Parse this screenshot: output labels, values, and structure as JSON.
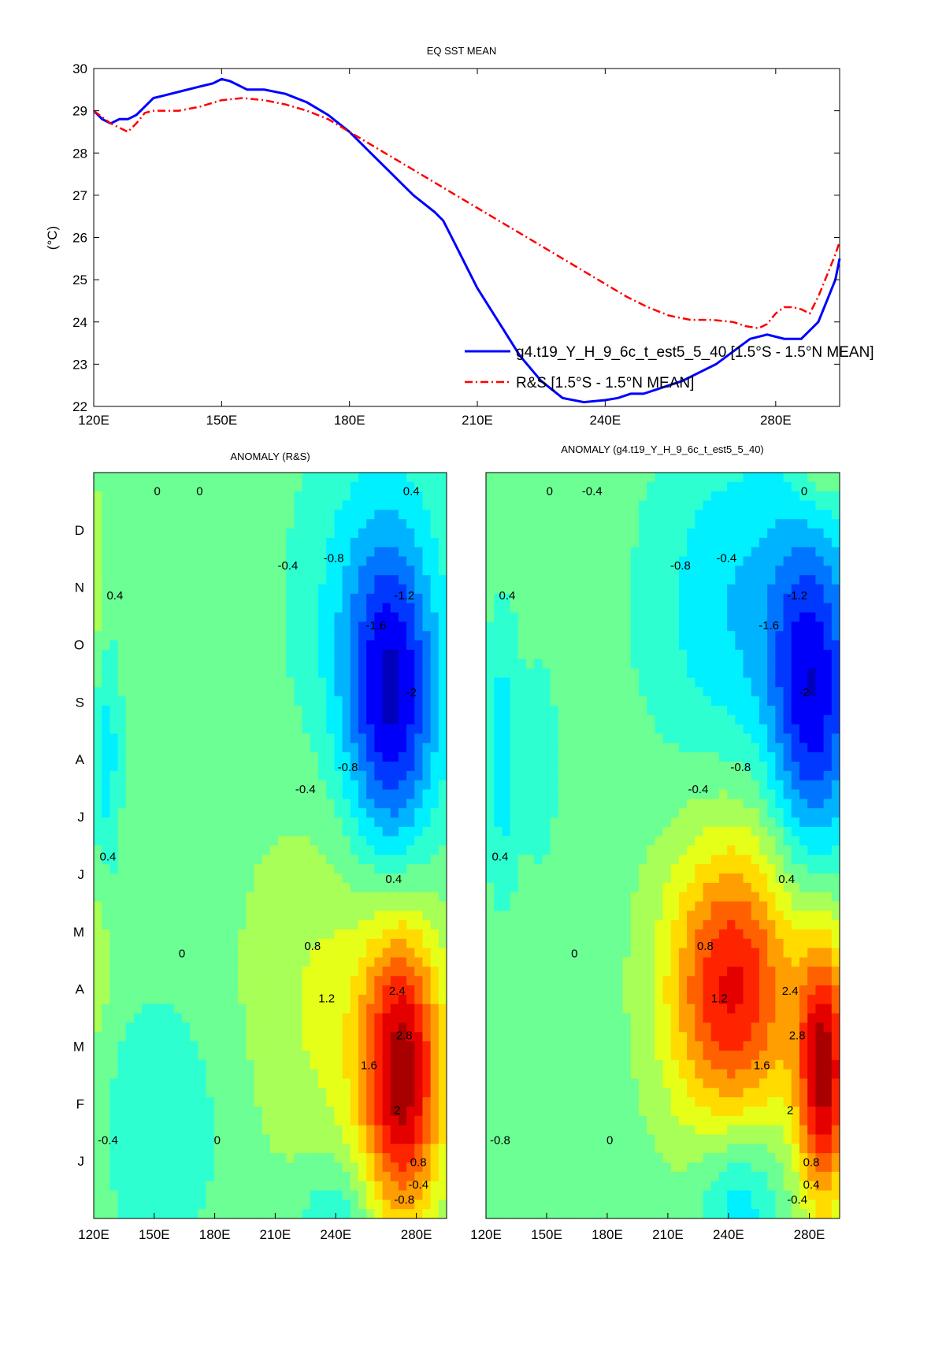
{
  "chart_data": [
    {
      "type": "line",
      "title": "EQ SST MEAN",
      "ylabel": "(°C)",
      "xlabel": "",
      "xlim": [
        120,
        295
      ],
      "ylim": [
        22,
        30
      ],
      "xticks": [
        120,
        150,
        180,
        210,
        240,
        280
      ],
      "xtick_labels": [
        "120E",
        "150E",
        "180E",
        "210E",
        "240E",
        "280E"
      ],
      "yticks": [
        22,
        23,
        24,
        25,
        26,
        27,
        28,
        29,
        30
      ],
      "ytick_labels": [
        "22",
        "23",
        "24",
        "25",
        "26",
        "27",
        "28",
        "29",
        "30"
      ],
      "legend_position": "lower-right",
      "series": [
        {
          "name": "g4.t19_Y_H_9_6c_t_est5_5_40 [1.5°S - 1.5°N MEAN]",
          "color": "#0000ff",
          "style": "solid",
          "x": [
            120,
            122,
            124,
            126,
            128,
            130,
            132,
            134,
            136,
            140,
            144,
            148,
            150,
            152,
            154,
            156,
            158,
            160,
            165,
            170,
            175,
            180,
            185,
            190,
            195,
            200,
            202,
            204,
            206,
            208,
            210,
            215,
            220,
            225,
            230,
            235,
            240,
            243,
            246,
            249,
            252,
            255,
            258,
            262,
            266,
            270,
            274,
            278,
            282,
            286,
            290,
            292,
            294,
            295
          ],
          "y": [
            29.0,
            28.8,
            28.7,
            28.8,
            28.8,
            28.9,
            29.1,
            29.3,
            29.35,
            29.45,
            29.55,
            29.65,
            29.75,
            29.7,
            29.6,
            29.5,
            29.5,
            29.5,
            29.4,
            29.2,
            28.9,
            28.5,
            28.0,
            27.5,
            27.0,
            26.6,
            26.4,
            26.0,
            25.6,
            25.2,
            24.8,
            24.0,
            23.2,
            22.6,
            22.2,
            22.1,
            22.15,
            22.2,
            22.3,
            22.3,
            22.4,
            22.5,
            22.6,
            22.8,
            23.0,
            23.3,
            23.6,
            23.7,
            23.6,
            23.6,
            24.0,
            24.5,
            25.0,
            25.5
          ]
        },
        {
          "name": "R&S [1.5°S - 1.5°N MEAN]",
          "color": "#ff0000",
          "style": "dash-dot",
          "x": [
            120,
            122,
            124,
            126,
            128,
            130,
            132,
            134,
            136,
            140,
            145,
            150,
            155,
            160,
            165,
            170,
            175,
            180,
            185,
            190,
            195,
            200,
            205,
            210,
            215,
            220,
            225,
            230,
            235,
            240,
            245,
            250,
            255,
            260,
            265,
            270,
            273,
            276,
            278,
            280,
            282,
            284,
            286,
            288,
            290,
            292,
            294,
            295
          ],
          "y": [
            29.0,
            28.85,
            28.7,
            28.6,
            28.5,
            28.7,
            28.95,
            29.0,
            29.0,
            29.0,
            29.1,
            29.25,
            29.3,
            29.25,
            29.15,
            29.0,
            28.8,
            28.5,
            28.2,
            27.9,
            27.6,
            27.3,
            27.0,
            26.7,
            26.4,
            26.1,
            25.8,
            25.5,
            25.2,
            24.9,
            24.6,
            24.35,
            24.15,
            24.05,
            24.05,
            24.0,
            23.9,
            23.85,
            23.95,
            24.2,
            24.35,
            24.35,
            24.3,
            24.2,
            24.6,
            25.1,
            25.6,
            25.9
          ]
        }
      ]
    },
    {
      "type": "heatmap",
      "title": "ANOMALY (R&S)",
      "xlim": [
        120,
        295
      ],
      "xticks": [
        120,
        150,
        180,
        210,
        240,
        280
      ],
      "xtick_labels": [
        "120E",
        "150E",
        "180E",
        "210E",
        "240E",
        "280E"
      ],
      "ytick_labels": [
        "J",
        "F",
        "M",
        "A",
        "M",
        "J",
        "J",
        "A",
        "S",
        "O",
        "N",
        "D"
      ],
      "colormap": "jet",
      "clim": [
        -2.4,
        2.8
      ],
      "contour_interval": 0.4,
      "blobs": [
        {
          "lon": 273,
          "month": 2.3,
          "value": 3.0,
          "sx": 14,
          "sy": 1.7
        },
        {
          "lon": 240,
          "month": 3.5,
          "value": 0.7,
          "sx": 32,
          "sy": 2.2
        },
        {
          "lon": 268,
          "month": 8.2,
          "value": -2.3,
          "sx": 16,
          "sy": 1.9
        },
        {
          "lon": 255,
          "month": 9.8,
          "value": -0.7,
          "sx": 26,
          "sy": 2.0
        },
        {
          "lon": 126,
          "month": 7.6,
          "value": -0.9,
          "sx": 5,
          "sy": 1.5
        },
        {
          "lon": 155,
          "month": 1.5,
          "value": -0.5,
          "sx": 22,
          "sy": 1.5
        },
        {
          "lon": 122,
          "month": 9.8,
          "value": 0.5,
          "sx": 5,
          "sy": 1.5
        },
        {
          "lon": 122,
          "month": 4.2,
          "value": 0.5,
          "sx": 5,
          "sy": 1.2
        },
        {
          "lon": 240,
          "month": -0.2,
          "value": -0.8,
          "sx": 14,
          "sy": 0.8
        }
      ],
      "contour_labels": [
        "0",
        "0",
        "0.4",
        "0.4",
        "-0.4",
        "-0.8",
        "-1.2",
        "-1.6",
        "-2",
        "-0.8",
        "-0.4",
        "0.4",
        "0.8",
        "1.2",
        "1.6",
        "2",
        "2.4",
        "2.8",
        "0.8",
        "-0.4",
        "-0.8",
        "-0.4",
        "0",
        "0",
        "0.4"
      ]
    },
    {
      "type": "heatmap",
      "title": "ANOMALY (g4.t19_Y_H_9_6c_t_est5_5_40)",
      "xlim": [
        120,
        295
      ],
      "xticks": [
        120,
        150,
        180,
        210,
        240,
        280
      ],
      "xtick_labels": [
        "120E",
        "150E",
        "180E",
        "210E",
        "240E",
        "280E"
      ],
      "ytick_labels": [],
      "colormap": "jet",
      "clim": [
        -2.4,
        2.8
      ],
      "contour_interval": 0.4,
      "blobs": [
        {
          "lon": 287,
          "month": 2.3,
          "value": 3.0,
          "sx": 9,
          "sy": 1.5
        },
        {
          "lon": 240,
          "month": 3.6,
          "value": 2.2,
          "sx": 22,
          "sy": 1.6
        },
        {
          "lon": 255,
          "month": 4.5,
          "value": 0.6,
          "sx": 30,
          "sy": 2.0
        },
        {
          "lon": 282,
          "month": 8.3,
          "value": -2.3,
          "sx": 15,
          "sy": 2.0
        },
        {
          "lon": 245,
          "month": 9.8,
          "value": -1.0,
          "sx": 30,
          "sy": 2.0
        },
        {
          "lon": 128,
          "month": 7.5,
          "value": -0.9,
          "sx": 6,
          "sy": 1.5
        },
        {
          "lon": 147,
          "month": 7.3,
          "value": -0.5,
          "sx": 6,
          "sy": 1.2
        },
        {
          "lon": 245,
          "month": 0.3,
          "value": -1.0,
          "sx": 14,
          "sy": 0.9
        },
        {
          "lon": 285,
          "month": 12.3,
          "value": 0.8,
          "sx": 9,
          "sy": 0.7
        }
      ],
      "contour_labels": [
        "0",
        "-0.4",
        "0.4",
        "0",
        "-0.8",
        "-0.4",
        "-1.2",
        "-1.6",
        "-2",
        "-0.8",
        "-0.4",
        "0.4",
        "0.8",
        "1.2",
        "1.6",
        "2",
        "2.4",
        "2.8",
        "0.8",
        "0.4",
        "-0.4",
        "-0.8",
        "0",
        "0",
        "0.4"
      ]
    }
  ]
}
